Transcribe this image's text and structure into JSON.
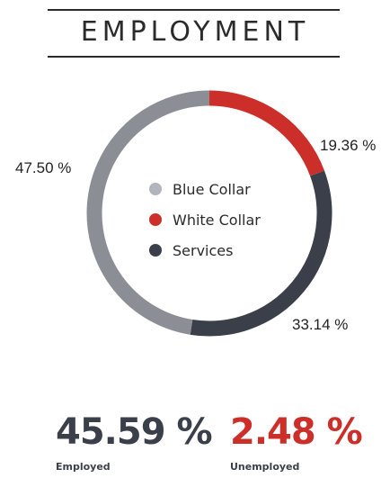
{
  "title": "EMPLOYMENT",
  "colors": {
    "blue_collar": "#8c8e96",
    "white_collar": "#cc2f2a",
    "services": "#3a3f4a",
    "legend_blue_collar_dot": "#b3b5bc",
    "employed_value": "#3a3f4a",
    "unemployed_value": "#cc2f2a"
  },
  "chart_data": {
    "type": "pie",
    "variant": "donut",
    "title": "EMPLOYMENT",
    "categories": [
      "Blue Collar",
      "White Collar",
      "Services"
    ],
    "values": [
      47.5,
      19.36,
      33.14
    ],
    "value_labels": [
      "47.50 %",
      "19.36 %",
      "33.14 %"
    ],
    "legend_placement": "center"
  },
  "stats": {
    "employed": {
      "value": "45.59 %",
      "label": "Employed"
    },
    "unemployed": {
      "value": "2.48 %",
      "label": "Unemployed"
    }
  }
}
